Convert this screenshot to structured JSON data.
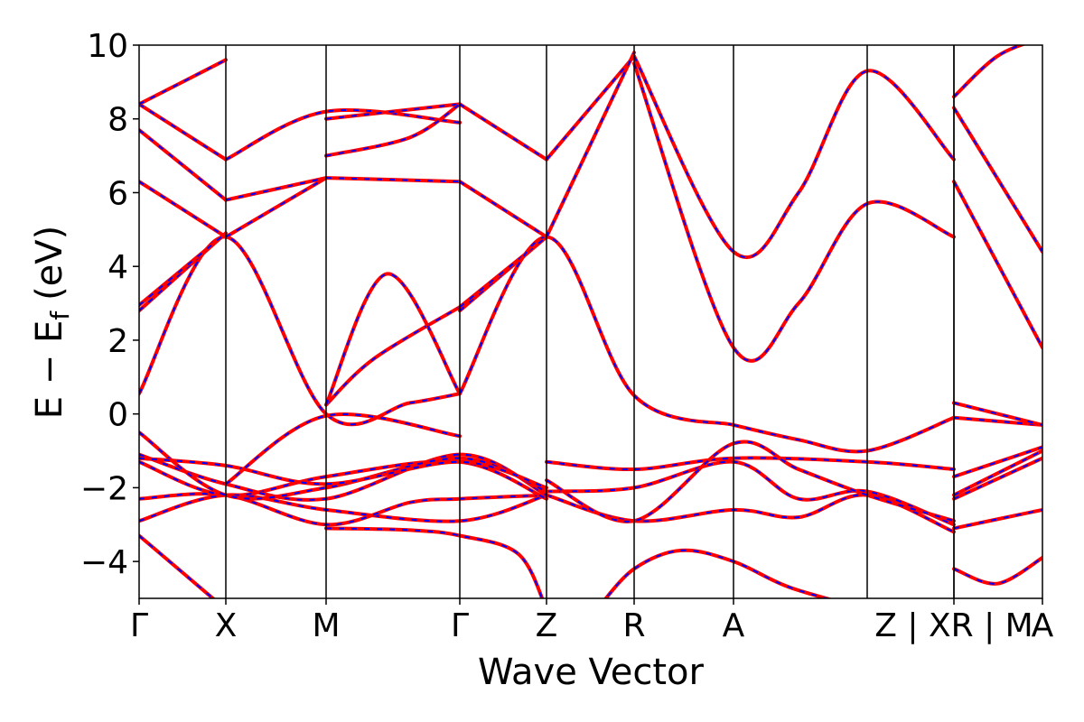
{
  "chart_data": {
    "type": "line",
    "title": "",
    "xlabel": "Wave Vector",
    "ylabel": "E − E",
    "ylabel_subscript": "f",
    "ylabel_unit": "(eV)",
    "ylim": [
      -5,
      10
    ],
    "yticks": [
      -4,
      -2,
      0,
      2,
      4,
      6,
      8,
      10
    ],
    "ytick_labels": [
      "−4",
      "−2",
      "0",
      "2",
      "4",
      "6",
      "8",
      "10"
    ],
    "xlim": [
      0,
      10
    ],
    "kpoints": [
      {
        "label": "Γ",
        "x": 0.0
      },
      {
        "label": "X",
        "x": 0.96
      },
      {
        "label": "M",
        "x": 2.07
      },
      {
        "label": "Γ",
        "x": 3.55
      },
      {
        "label": "Z",
        "x": 4.51
      },
      {
        "label": "R",
        "x": 5.48
      },
      {
        "label": "A",
        "x": 6.58
      },
      {
        "label": "Z | XR | M",
        "x": 9.02
      },
      {
        "label": "A",
        "x": 10.0
      }
    ],
    "segment_breaks": [
      8.06,
      9.02
    ],
    "grid": false,
    "colors": {
      "solid_band": "#ff0000",
      "dashed_band": "#0000ff"
    },
    "series": [
      {
        "x": [
          0,
          0.96
        ],
        "y": [
          -3.3,
          -5.3
        ]
      },
      {
        "x": [
          2.07,
          3.0,
          3.55,
          4.2,
          4.51
        ],
        "y": [
          -3.1,
          -3.15,
          -3.3,
          -3.8,
          -5.3
        ]
      },
      {
        "x": [
          5.1,
          5.48,
          6.0,
          6.58,
          7.2,
          8.06
        ],
        "y": [
          -5.2,
          -4.2,
          -3.7,
          -4.0,
          -4.7,
          -5.3
        ]
      },
      {
        "x": [
          9.02,
          9.5,
          10.0
        ],
        "y": [
          -4.2,
          -4.6,
          -3.9
        ]
      },
      {
        "x": [
          0,
          0.96,
          2.07,
          3.55,
          4.51
        ],
        "y": [
          -2.9,
          -2.2,
          -2.6,
          -2.9,
          -2.2
        ]
      },
      {
        "x": [
          4.51,
          5.48,
          6.58,
          7.3,
          8.06,
          9.02
        ],
        "y": [
          -2.2,
          -2.9,
          -2.6,
          -2.8,
          -2.2,
          -3.2
        ]
      },
      {
        "x": [
          9.02,
          10.0
        ],
        "y": [
          -3.1,
          -2.6
        ]
      },
      {
        "x": [
          0,
          0.96,
          2.07,
          3.0,
          3.55,
          4.51
        ],
        "y": [
          -2.3,
          -2.2,
          -3.0,
          -2.4,
          -2.3,
          -2.2
        ]
      },
      {
        "x": [
          4.51,
          5.48,
          6.58,
          7.3,
          8.06,
          9.02
        ],
        "y": [
          -2.1,
          -2.0,
          -1.3,
          -2.3,
          -2.1,
          -3.0
        ]
      },
      {
        "x": [
          9.02,
          10.0
        ],
        "y": [
          -2.3,
          -1.2
        ]
      },
      {
        "x": [
          0,
          0.96,
          2.07,
          3.55,
          4.51
        ],
        "y": [
          -1.3,
          -2.2,
          -1.7,
          -1.3,
          -2.3
        ]
      },
      {
        "x": [
          4.51,
          5.48,
          6.58,
          8.06,
          9.02
        ],
        "y": [
          -1.3,
          -1.5,
          -1.2,
          -1.3,
          -1.5
        ]
      },
      {
        "x": [
          9.02,
          10.0
        ],
        "y": [
          -2.2,
          -1.0
        ]
      },
      {
        "x": [
          0,
          0.96,
          2.07,
          3.55,
          4.51
        ],
        "y": [
          -1.1,
          -1.9,
          -2.3,
          -1.1,
          -2.2
        ]
      },
      {
        "x": [
          4.51,
          5.48,
          6.58,
          7.3,
          8.06,
          9.02
        ],
        "y": [
          -1.8,
          -2.9,
          -0.8,
          -1.5,
          -2.2,
          -2.9
        ]
      },
      {
        "x": [
          9.02,
          10.0
        ],
        "y": [
          -1.7,
          -0.9
        ]
      },
      {
        "x": [
          0,
          0.96,
          2.07,
          3.55,
          4.51
        ],
        "y": [
          -0.5,
          -2.2,
          -2.0,
          -1.2,
          -2.1
        ]
      },
      {
        "x": [
          0,
          0.96,
          2.07,
          3.55,
          4.51
        ],
        "y": [
          -1.2,
          -1.4,
          -1.9,
          -1.3,
          -2.0
        ]
      },
      {
        "x": [
          0,
          0.96,
          2.07,
          3.0,
          3.55
        ],
        "y": [
          0.55,
          4.8,
          0.0,
          0.3,
          0.55
        ]
      },
      {
        "x": [
          0.96,
          2.07,
          3.55
        ],
        "y": [
          -1.9,
          -0.05,
          -0.6
        ]
      },
      {
        "x": [
          2.07,
          2.6,
          3.55
        ],
        "y": [
          0.25,
          1.5,
          2.9
        ]
      },
      {
        "x": [
          2.07,
          2.75,
          3.55
        ],
        "y": [
          0.25,
          3.8,
          0.55
        ]
      },
      {
        "x": [
          3.55,
          4.51
        ],
        "y": [
          2.8,
          4.8
        ]
      },
      {
        "x": [
          3.55,
          4.51
        ],
        "y": [
          2.9,
          4.8
        ]
      },
      {
        "x": [
          3.55,
          4.51,
          5.48,
          6.58
        ],
        "y": [
          0.55,
          4.8,
          0.5,
          -0.3
        ]
      },
      {
        "x": [
          6.58,
          7.3,
          8.06,
          9.02
        ],
        "y": [
          -0.3,
          -0.7,
          -1.0,
          -0.1
        ]
      },
      {
        "x": [
          9.02,
          10.0
        ],
        "y": [
          -0.1,
          -0.3
        ]
      },
      {
        "x": [
          9.02,
          10.0
        ],
        "y": [
          0.3,
          -0.3
        ]
      },
      {
        "x": [
          0,
          0.96
        ],
        "y": [
          2.8,
          4.9
        ]
      },
      {
        "x": [
          0,
          0.96
        ],
        "y": [
          2.95,
          4.9
        ]
      },
      {
        "x": [
          0,
          0.96
        ],
        "y": [
          6.3,
          4.8
        ]
      },
      {
        "x": [
          0,
          0.96
        ],
        "y": [
          7.7,
          5.8
        ]
      },
      {
        "x": [
          0,
          0.96
        ],
        "y": [
          8.4,
          6.9
        ]
      },
      {
        "x": [
          0,
          0.96
        ],
        "y": [
          8.4,
          9.6
        ]
      },
      {
        "x": [
          0.96,
          2.07,
          3.55
        ],
        "y": [
          6.9,
          8.2,
          7.9
        ]
      },
      {
        "x": [
          0.96,
          2.07
        ],
        "y": [
          4.8,
          6.4
        ]
      },
      {
        "x": [
          0.96,
          2.07
        ],
        "y": [
          5.8,
          6.4
        ]
      },
      {
        "x": [
          2.07,
          3.55
        ],
        "y": [
          8.0,
          8.4
        ]
      },
      {
        "x": [
          2.07,
          3.55
        ],
        "y": [
          6.4,
          6.3
        ]
      },
      {
        "x": [
          2.07,
          3.0,
          3.55
        ],
        "y": [
          7.0,
          7.5,
          8.4
        ]
      },
      {
        "x": [
          3.55,
          4.51
        ],
        "y": [
          6.3,
          4.8
        ]
      },
      {
        "x": [
          3.55,
          4.51
        ],
        "y": [
          8.4,
          6.9
        ]
      },
      {
        "x": [
          4.51,
          5.48
        ],
        "y": [
          6.9,
          9.7
        ]
      },
      {
        "x": [
          4.51,
          5.48
        ],
        "y": [
          4.8,
          9.8
        ]
      },
      {
        "x": [
          5.48,
          6.58,
          7.3,
          8.06,
          9.02
        ],
        "y": [
          9.7,
          4.4,
          6.0,
          9.3,
          6.9
        ]
      },
      {
        "x": [
          5.48,
          6.58,
          7.3,
          8.06,
          9.02
        ],
        "y": [
          9.5,
          1.8,
          3.0,
          5.7,
          4.8
        ]
      },
      {
        "x": [
          9.02,
          10.0
        ],
        "y": [
          8.3,
          4.4
        ]
      },
      {
        "x": [
          9.02,
          10.0
        ],
        "y": [
          6.3,
          1.8
        ]
      },
      {
        "x": [
          9.02,
          9.5,
          10.0
        ],
        "y": [
          8.6,
          9.7,
          10.2
        ]
      }
    ]
  }
}
